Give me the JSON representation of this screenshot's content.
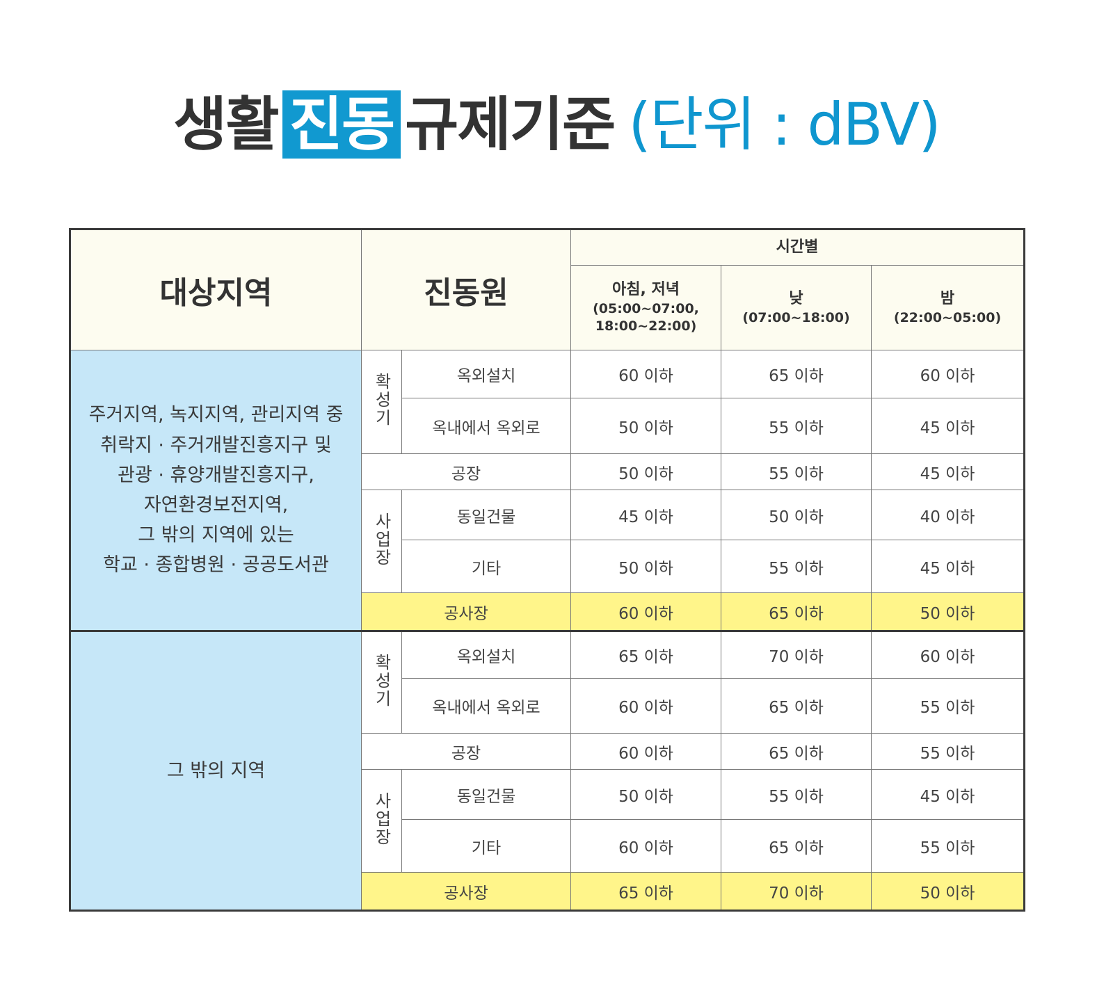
{
  "title": {
    "part1": "생활",
    "highlight": "진동",
    "part2": "규제기준",
    "unit": "(단위 : dBV)"
  },
  "colors": {
    "accent": "#1199d0",
    "header_bg": "#fdfcf0",
    "region_bg": "#c6e7f8",
    "construction_bg": "#fff58a"
  },
  "header": {
    "region": "대상지역",
    "source": "진동원",
    "time": "시간별",
    "periods": [
      {
        "label": "아침, 저녁",
        "hours": "(05:00~07:00,",
        "hours2": "18:00~22:00)"
      },
      {
        "label": "낮",
        "hours": "(07:00~18:00)"
      },
      {
        "label": "밤",
        "hours": "(22:00~05:00)"
      }
    ]
  },
  "groups": [
    {
      "region_lines": [
        "주거지역, 녹지지역, 관리지역 중",
        "취락지 · 주거개발진흥지구 및",
        "관광 · 휴양개발진흥지구,",
        "자연환경보전지역,",
        "그 밖의 지역에 있는",
        "학교 · 종합병원 · 공공도서관"
      ],
      "rows": [
        {
          "category": "확성기",
          "source": "옥외설치",
          "values": [
            "60 이하",
            "65 이하",
            "60 이하"
          ]
        },
        {
          "source": "옥내에서 옥외로",
          "values": [
            "50 이하",
            "55 이하",
            "45 이하"
          ]
        },
        {
          "source": "공장",
          "values": [
            "50 이하",
            "55 이하",
            "45 이하"
          ]
        },
        {
          "category": "사업장",
          "source": "동일건물",
          "values": [
            "45 이하",
            "50 이하",
            "40 이하"
          ]
        },
        {
          "source": "기타",
          "values": [
            "50 이하",
            "55 이하",
            "45 이하"
          ]
        },
        {
          "source": "공사장",
          "values": [
            "60 이하",
            "65 이하",
            "50 이하"
          ]
        }
      ]
    },
    {
      "region_lines": [
        "그 밖의 지역"
      ],
      "rows": [
        {
          "category": "확성기",
          "source": "옥외설치",
          "values": [
            "65 이하",
            "70 이하",
            "60 이하"
          ]
        },
        {
          "source": "옥내에서 옥외로",
          "values": [
            "60 이하",
            "65 이하",
            "55 이하"
          ]
        },
        {
          "source": "공장",
          "values": [
            "60 이하",
            "65 이하",
            "55 이하"
          ]
        },
        {
          "category": "사업장",
          "source": "동일건물",
          "values": [
            "50 이하",
            "55 이하",
            "45 이하"
          ]
        },
        {
          "source": "기타",
          "values": [
            "60 이하",
            "65 이하",
            "55 이하"
          ]
        },
        {
          "source": "공사장",
          "values": [
            "65 이하",
            "70 이하",
            "50 이하"
          ]
        }
      ]
    }
  ]
}
